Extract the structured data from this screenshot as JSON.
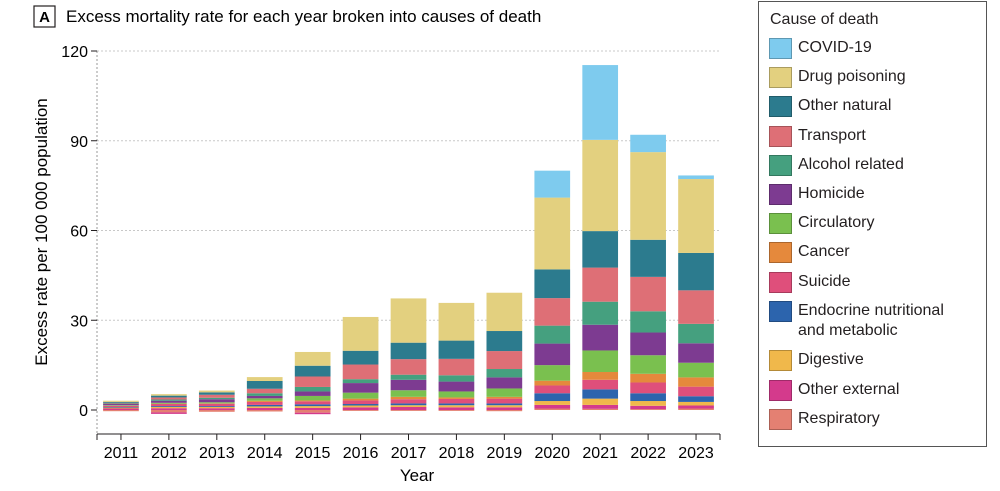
{
  "panel_label": "A",
  "chart_data": {
    "type": "bar",
    "stacked": true,
    "title": "Excess mortality rate for each year broken into causes of death",
    "xlabel": "Year",
    "ylabel": "Excess rate per 100 000 population",
    "ylim": [
      -2,
      120
    ],
    "yticks": [
      0,
      30,
      60,
      90,
      120
    ],
    "grid": true,
    "legend_title": "Cause of death",
    "legend_position": "right",
    "categories": [
      "2011",
      "2012",
      "2013",
      "2014",
      "2015",
      "2016",
      "2017",
      "2018",
      "2019",
      "2020",
      "2021",
      "2022",
      "2023"
    ],
    "series": [
      {
        "name": "Respiratory",
        "color": "#e48072",
        "values": [
          0,
          0,
          0,
          0,
          0,
          0,
          0,
          0,
          0,
          0.5,
          0.4,
          0.3,
          0.5
        ],
        "negatives": [
          -0.4,
          -0.8,
          -0.6,
          -0.5,
          -0.9,
          -0.3,
          -0.3,
          -0.3,
          -0.4,
          0,
          0,
          0,
          0
        ]
      },
      {
        "name": "Other external",
        "color": "#d43a8c",
        "values": [
          0.5,
          0.6,
          0.6,
          0.7,
          0.7,
          0.9,
          1.0,
          0.9,
          0.9,
          1.2,
          1.3,
          1.1,
          1.0
        ],
        "negatives": [
          0,
          -0.5,
          0,
          0,
          -0.5,
          0,
          0,
          0,
          0,
          0,
          0,
          0,
          0
        ]
      },
      {
        "name": "Digestive",
        "color": "#f0b84b",
        "values": [
          0.3,
          0.4,
          0.4,
          0.5,
          0.6,
          0.6,
          0.6,
          0.7,
          0.7,
          1.3,
          2.1,
          1.6,
          1.2
        ]
      },
      {
        "name": "Endocrine nutritional and metabolic",
        "color": "#2c64ad",
        "values": [
          0.2,
          0.3,
          0.3,
          0.5,
          0.6,
          0.5,
          0.6,
          0.6,
          0.6,
          2.6,
          3.1,
          2.6,
          1.9
        ]
      },
      {
        "name": "Suicide",
        "color": "#df4f7b",
        "values": [
          0.4,
          0.7,
          0.8,
          1.0,
          1.0,
          1.2,
          1.4,
          1.5,
          1.6,
          2.6,
          3.2,
          3.6,
          3.2
        ]
      },
      {
        "name": "Cancer",
        "color": "#e5893c",
        "values": [
          0,
          0.1,
          0.1,
          0.4,
          0.3,
          0.6,
          0.8,
          0.5,
          0.6,
          1.6,
          2.6,
          2.9,
          3.1
        ]
      },
      {
        "name": "Circulatory",
        "color": "#7ac04f",
        "values": [
          0.2,
          0.3,
          0.4,
          0.8,
          1.5,
          2.0,
          2.2,
          2.0,
          2.8,
          5.2,
          7.2,
          6.2,
          4.9
        ]
      },
      {
        "name": "Homicide",
        "color": "#7d3b91",
        "values": [
          0.4,
          0.7,
          1.0,
          0.8,
          1.5,
          3.2,
          3.5,
          3.3,
          3.7,
          7.2,
          8.6,
          7.6,
          6.5
        ]
      },
      {
        "name": "Alcohol related",
        "color": "#45a07f",
        "values": [
          0.2,
          0.4,
          0.5,
          0.9,
          1.5,
          1.3,
          1.7,
          2.1,
          2.8,
          6.0,
          7.7,
          7.1,
          6.5
        ]
      },
      {
        "name": "Transport",
        "color": "#de6f76",
        "values": [
          0.2,
          0.7,
          1.0,
          1.5,
          3.5,
          4.9,
          5.2,
          5.5,
          6.0,
          9.2,
          11.4,
          11.5,
          11.2
        ]
      },
      {
        "name": "Other natural",
        "color": "#2c7b8e",
        "values": [
          0.3,
          0.6,
          0.8,
          2.6,
          3.6,
          4.6,
          5.5,
          6.1,
          6.7,
          9.6,
          12.2,
          12.4,
          12.5
        ]
      },
      {
        "name": "Drug poisoning",
        "color": "#e3d07f",
        "values": [
          0.4,
          0.5,
          0.6,
          1.3,
          4.6,
          11.3,
          14.8,
          12.6,
          12.8,
          24.0,
          30.5,
          29.3,
          24.7
        ]
      },
      {
        "name": "COVID-19",
        "color": "#7ecbee",
        "values": [
          0,
          0,
          0,
          0,
          0,
          0,
          0,
          0,
          0,
          9.0,
          25.0,
          5.8,
          1.2
        ]
      }
    ]
  },
  "legend": [
    {
      "label": "COVID-19",
      "color": "#7ecbee"
    },
    {
      "label": "Drug poisoning",
      "color": "#e3d07f"
    },
    {
      "label": "Other natural",
      "color": "#2c7b8e"
    },
    {
      "label": "Transport",
      "color": "#de6f76"
    },
    {
      "label": "Alcohol related",
      "color": "#45a07f"
    },
    {
      "label": "Homicide",
      "color": "#7d3b91"
    },
    {
      "label": "Circulatory",
      "color": "#7ac04f"
    },
    {
      "label": "Cancer",
      "color": "#e5893c"
    },
    {
      "label": "Suicide",
      "color": "#df4f7b"
    },
    {
      "label": "Endocrine nutritional\nand metabolic",
      "color": "#2c64ad"
    },
    {
      "label": "Digestive",
      "color": "#f0b84b"
    },
    {
      "label": "Other external",
      "color": "#d43a8c"
    },
    {
      "label": "Respiratory",
      "color": "#e48072"
    }
  ]
}
